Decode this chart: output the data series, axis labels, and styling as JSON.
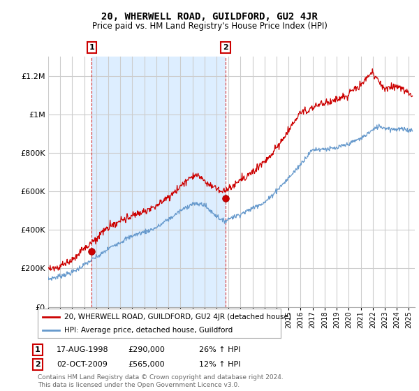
{
  "title": "20, WHERWELL ROAD, GUILDFORD, GU2 4JR",
  "subtitle": "Price paid vs. HM Land Registry's House Price Index (HPI)",
  "ylim": [
    0,
    1300000
  ],
  "yticks": [
    0,
    200000,
    400000,
    600000,
    800000,
    1000000,
    1200000
  ],
  "line_color_red": "#cc0000",
  "line_color_blue": "#6699cc",
  "shade_color": "#ddeeff",
  "background_color": "#ffffff",
  "grid_color": "#cccccc",
  "legend_label_red": "20, WHERWELL ROAD, GUILDFORD, GU2 4JR (detached house)",
  "legend_label_blue": "HPI: Average price, detached house, Guildford",
  "annotation1_date": "17-AUG-1998",
  "annotation1_price": "£290,000",
  "annotation1_hpi": "26% ↑ HPI",
  "annotation2_date": "02-OCT-2009",
  "annotation2_price": "£565,000",
  "annotation2_hpi": "12% ↑ HPI",
  "footer": "Contains HM Land Registry data © Crown copyright and database right 2024.\nThis data is licensed under the Open Government Licence v3.0.",
  "vline1_x": 1998.63,
  "vline2_x": 2009.75,
  "marker1_x": 1998.63,
  "marker1_y": 290000,
  "marker2_x": 2009.75,
  "marker2_y": 565000,
  "xmin": 1995,
  "xmax": 2025.5
}
